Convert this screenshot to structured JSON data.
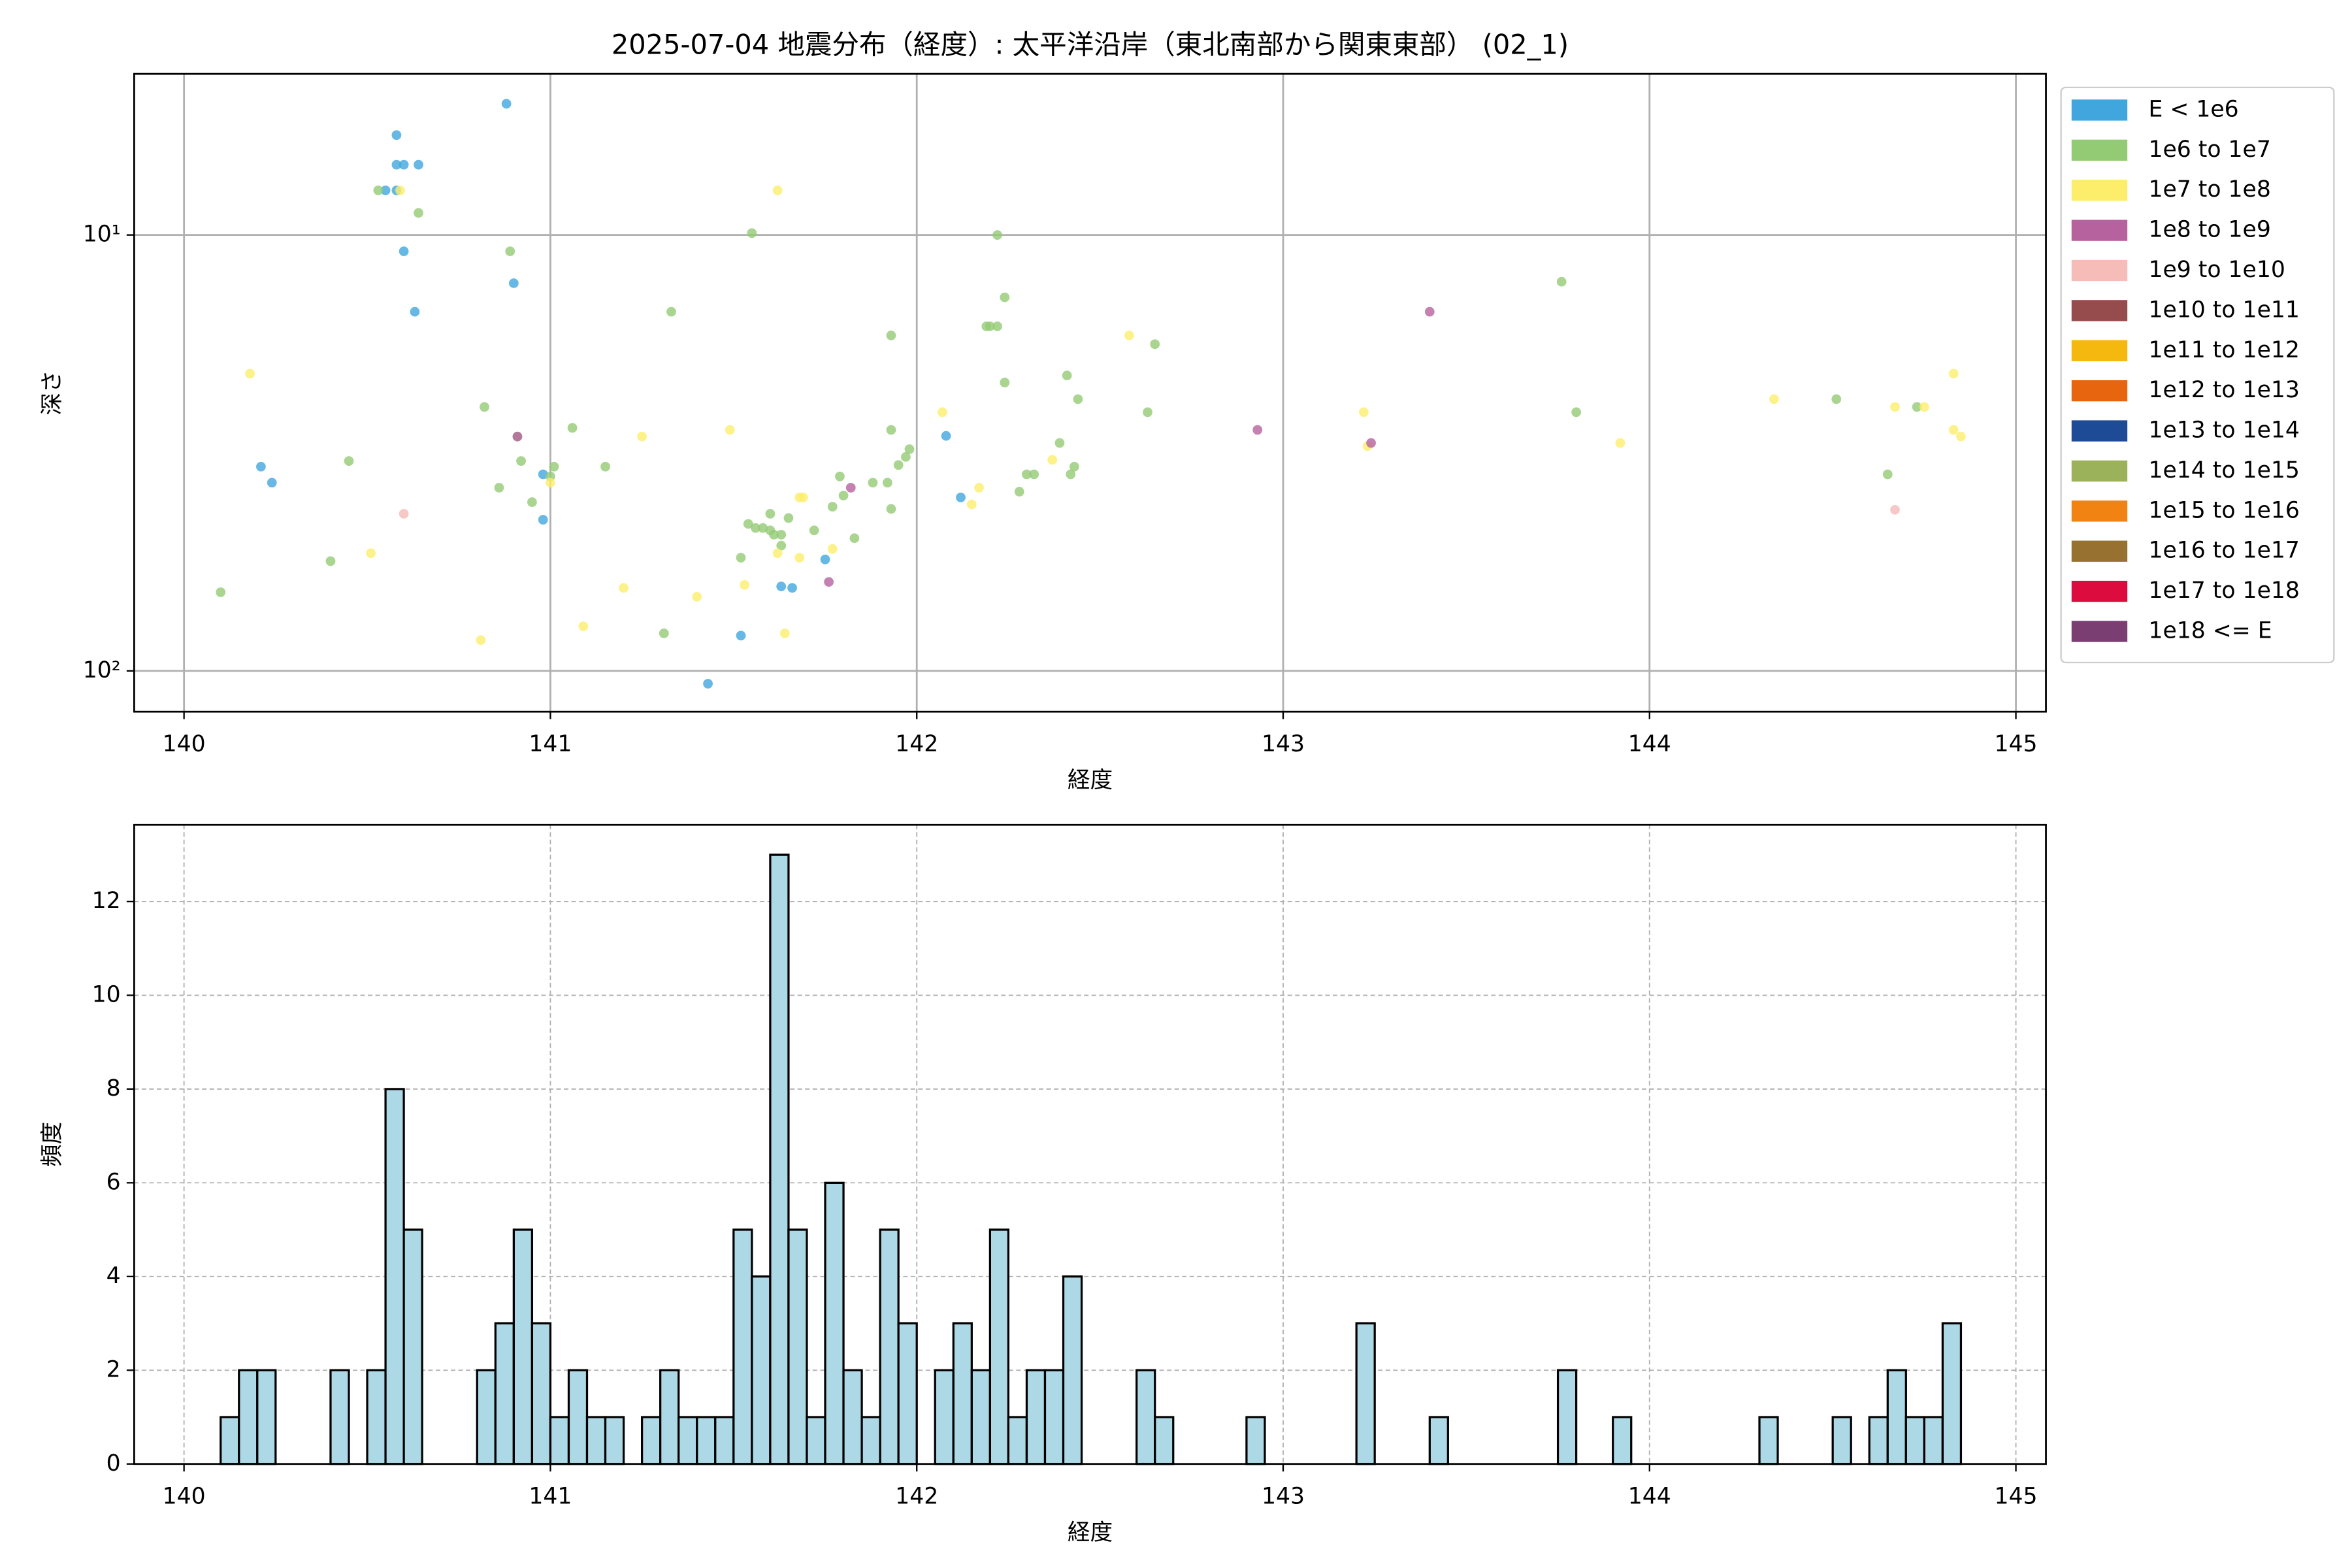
{
  "chart_data": [
    {
      "type": "scatter",
      "title": "2025-07-04 地震分布（経度）: 太平洋沿岸（東北南部から関東東部） (02_1)",
      "xlabel": "経度",
      "ylabel": "深さ",
      "xlim": [
        139.864,
        145.082
      ],
      "xticks": [
        140,
        141,
        142,
        143,
        144,
        145
      ],
      "ylim": [
        124,
        4.27
      ],
      "log_y": true,
      "yticks": [
        {
          "value": 10,
          "label": "10¹"
        },
        {
          "value": 100,
          "label": "10²"
        }
      ],
      "grid": true,
      "legend": "right",
      "series": [
        {
          "name": "E < 1e6",
          "color": "#41a6dd",
          "x": [
            140.58,
            140.58,
            140.6,
            140.64,
            140.55,
            140.58,
            140.88,
            140.6,
            140.9,
            140.63,
            140.21,
            140.24,
            140.98,
            140.98,
            142.08,
            142.12,
            141.75,
            141.63,
            141.66,
            141.52,
            141.43
          ],
          "values": [
            5.9,
            6.9,
            6.9,
            6.9,
            7.9,
            7.9,
            5.0,
            10.9,
            12.9,
            15,
            34,
            37,
            35.4,
            45,
            28.9,
            40,
            55.5,
            64,
            64.5,
            83,
            107
          ]
        },
        {
          "name": "1e6 to 1e7",
          "color": "#93cb75",
          "x": [
            140.1,
            140.4,
            140.45,
            140.53,
            140.64,
            140.82,
            140.86,
            140.89,
            140.91,
            140.92,
            140.95,
            141.0,
            141.01,
            141.06,
            141.15,
            141.33,
            141.31,
            141.52,
            141.54,
            141.55,
            141.56,
            141.58,
            141.6,
            141.6,
            141.61,
            141.63,
            141.63,
            141.65,
            141.72,
            141.77,
            141.79,
            141.8,
            141.83,
            141.88,
            141.92,
            141.93,
            141.93,
            141.93,
            141.95,
            141.97,
            141.98,
            142.19,
            142.2,
            142.22,
            142.22,
            142.24,
            142.24,
            142.28,
            142.3,
            142.32,
            142.39,
            142.41,
            142.42,
            142.43,
            142.44,
            142.65,
            142.63,
            143.76,
            143.8,
            144.51,
            144.65,
            144.73
          ],
          "values": [
            66,
            56,
            33,
            7.9,
            8.9,
            24.8,
            38,
            10.9,
            29,
            33,
            41,
            35.8,
            34,
            27.7,
            34,
            15,
            82,
            55,
            46,
            9.9,
            47,
            47,
            43.6,
            47.6,
            48.7,
            48.7,
            51.6,
            44.6,
            47.6,
            42,
            35.8,
            39.6,
            49.6,
            37,
            37,
            42.5,
            28,
            17,
            33.7,
            32.3,
            31,
            16.2,
            16.2,
            16.2,
            10,
            13.9,
            21.8,
            38.8,
            35.4,
            35.4,
            30,
            21,
            35.4,
            34,
            23.8,
            17.8,
            25.5,
            12.8,
            25.5,
            23.8,
            35.4,
            24.8
          ]
        },
        {
          "name": "1e7 to 1e8",
          "color": "#fced6b",
          "x": [
            140.18,
            140.59,
            141.62,
            140.51,
            140.81,
            141.09,
            141.2,
            141.25,
            141.4,
            141.49,
            141.0,
            141.53,
            141.62,
            141.64,
            141.68,
            141.69,
            141.68,
            141.77,
            142.07,
            142.15,
            142.17,
            142.37,
            142.58,
            143.22,
            143.23,
            143.92,
            144.34,
            144.67,
            144.75,
            144.83,
            144.83,
            144.85
          ],
          "values": [
            20.8,
            7.9,
            7.9,
            53.7,
            85,
            79,
            64.5,
            29,
            67.6,
            28,
            37,
            63.5,
            53.7,
            82,
            55,
            40,
            40,
            52.5,
            25.5,
            41.5,
            38,
            32.8,
            17,
            25.5,
            30.5,
            30,
            23.8,
            24.8,
            24.8,
            20.8,
            28,
            29
          ]
        },
        {
          "name": "1e8 to 1e9",
          "color": "#b5629f",
          "x": [
            140.91,
            141.82,
            141.76,
            142.93,
            143.24,
            143.4
          ],
          "values": [
            29,
            38,
            62.5,
            28,
            30,
            15
          ]
        },
        {
          "name": "1e9 to 1e10",
          "color": "#f5bcb8",
          "x": [
            140.6,
            144.67
          ],
          "values": [
            43.6,
            42.7
          ]
        },
        {
          "name": "1e10 to 1e11",
          "color": "#964c4c",
          "x": [],
          "values": []
        },
        {
          "name": "1e11 to 1e12",
          "color": "#f5b80f",
          "x": [],
          "values": []
        },
        {
          "name": "1e12 to 1e13",
          "color": "#e8650f",
          "x": [],
          "values": []
        },
        {
          "name": "1e13 to 1e14",
          "color": "#1e4b96",
          "x": [],
          "values": []
        },
        {
          "name": "1e14 to 1e15",
          "color": "#9bb25a",
          "x": [],
          "values": []
        },
        {
          "name": "1e15 to 1e16",
          "color": "#f08311",
          "x": [],
          "values": []
        },
        {
          "name": "1e16 to 1e17",
          "color": "#96712f",
          "x": [],
          "values": []
        },
        {
          "name": "1e17 to 1e18",
          "color": "#dc0c3f",
          "x": [],
          "values": []
        },
        {
          "name": "1e18 <= E",
          "color": "#7a3e73",
          "x": [],
          "values": []
        }
      ]
    },
    {
      "type": "histogram",
      "xlabel": "経度",
      "ylabel": "頻度",
      "xlim": [
        139.864,
        145.082
      ],
      "xticks": [
        140,
        141,
        142,
        143,
        144,
        145
      ],
      "ylim": [
        0,
        13.64
      ],
      "yticks": [
        0,
        2,
        4,
        6,
        8,
        10,
        12
      ],
      "grid": true,
      "color": "#add8e6",
      "edgecolor": "#000000",
      "bins": [
        140,
        140.05,
        140.1,
        140.15,
        140.2,
        140.25,
        140.3,
        140.35,
        140.4,
        140.45,
        140.5,
        140.55,
        140.6,
        140.65,
        140.7,
        140.75,
        140.8,
        140.85,
        140.9,
        140.95,
        141,
        141.05,
        141.1,
        141.15,
        141.2,
        141.25,
        141.3,
        141.35,
        141.4,
        141.45,
        141.5,
        141.55,
        141.6,
        141.65,
        141.7,
        141.75,
        141.8,
        141.85,
        141.9,
        141.95,
        142,
        142.05,
        142.1,
        142.15,
        142.2,
        142.25,
        142.3,
        142.35,
        142.4,
        142.45,
        142.5,
        142.55,
        142.6,
        142.65,
        142.7,
        142.75,
        142.8,
        142.85,
        142.9,
        142.95,
        143,
        143.05,
        143.1,
        143.15,
        143.2,
        143.25,
        143.3,
        143.35,
        143.4,
        143.45,
        143.5,
        143.55,
        143.6,
        143.65,
        143.7,
        143.75,
        143.8,
        143.85,
        143.9,
        143.95,
        144,
        144.05,
        144.1,
        144.15,
        144.2,
        144.25,
        144.3,
        144.35,
        144.4,
        144.45,
        144.5,
        144.55,
        144.6,
        144.65,
        144.7,
        144.75,
        144.8,
        144.85,
        144.9,
        144.95,
        145
      ],
      "counts": [
        0,
        0,
        1,
        2,
        2,
        0,
        0,
        0,
        2,
        0,
        2,
        8,
        5,
        0,
        0,
        0,
        2,
        3,
        5,
        3,
        1,
        2,
        1,
        1,
        0,
        1,
        2,
        1,
        1,
        1,
        5,
        4,
        13,
        5,
        1,
        6,
        2,
        1,
        5,
        3,
        0,
        2,
        3,
        2,
        5,
        1,
        2,
        2,
        4,
        0,
        0,
        0,
        2,
        1,
        0,
        0,
        0,
        0,
        1,
        0,
        0,
        0,
        0,
        0,
        3,
        0,
        0,
        0,
        1,
        0,
        0,
        0,
        0,
        0,
        0,
        2,
        0,
        0,
        1,
        0,
        0,
        0,
        0,
        0,
        0,
        0,
        1,
        0,
        0,
        0,
        1,
        0,
        1,
        2,
        1,
        1,
        3,
        0,
        0,
        0
      ]
    }
  ]
}
